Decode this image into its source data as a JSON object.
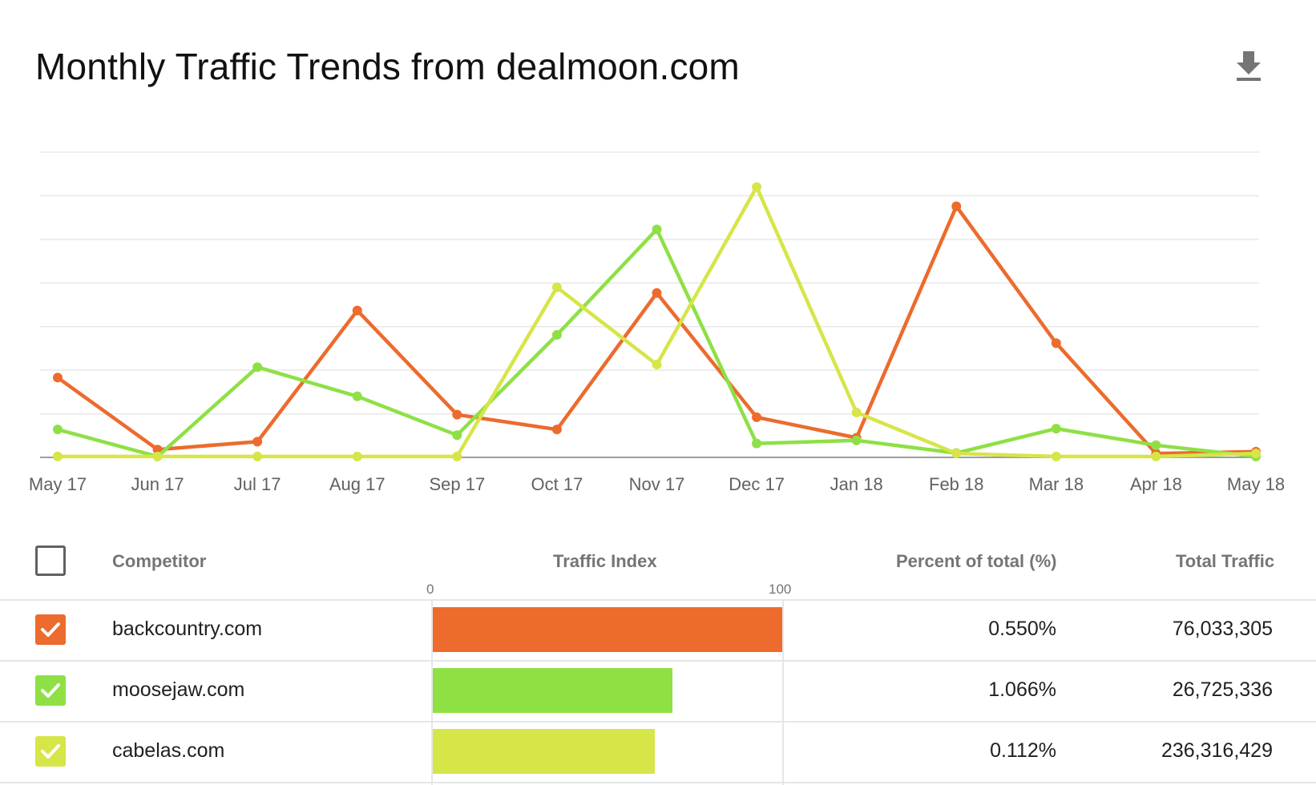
{
  "title": "Monthly Traffic Trends from dealmoon.com",
  "download_icon": "download-icon",
  "colors": {
    "backcountry": "#ec6b2d",
    "moosejaw": "#8ee045",
    "cabelas": "#d6e548",
    "grid": "#e8e8e8",
    "axis": "#9e9e9e"
  },
  "chart_data": {
    "type": "line",
    "title": "Monthly Traffic Trends from dealmoon.com",
    "xlabel": "",
    "ylabel": "",
    "x": [
      "May 17",
      "Jun 17",
      "Jul 17",
      "Aug 17",
      "Sep 17",
      "Oct 17",
      "Nov 17",
      "Dec 17",
      "Jan 18",
      "Feb 18",
      "Mar 18",
      "Apr 18",
      "May 18"
    ],
    "ylim": [
      0,
      7
    ],
    "grid": true,
    "y_tick_labels_shown": false,
    "series": [
      {
        "name": "backcountry.com",
        "color": "#ec6b2d",
        "values": [
          1.83,
          0.18,
          0.36,
          3.37,
          0.98,
          0.64,
          3.77,
          0.92,
          0.45,
          5.76,
          2.62,
          0.09,
          0.13
        ]
      },
      {
        "name": "moosejaw.com",
        "color": "#8ee045",
        "values": [
          0.64,
          0.02,
          2.07,
          1.4,
          0.51,
          2.81,
          5.23,
          0.32,
          0.39,
          0.1,
          0.66,
          0.28,
          0.02
        ]
      },
      {
        "name": "cabelas.com",
        "color": "#d6e548",
        "values": [
          0.02,
          0.02,
          0.02,
          0.02,
          0.02,
          3.9,
          2.13,
          6.2,
          1.03,
          0.09,
          0.02,
          0.02,
          0.09
        ]
      }
    ]
  },
  "table": {
    "headers": {
      "competitor": "Competitor",
      "traffic_index": "Traffic Index",
      "percent": "Percent of total (%)",
      "total": "Total Traffic"
    },
    "scale_min": "0",
    "scale_max": "100",
    "select_all_checked": false,
    "rows": [
      {
        "name": "backcountry.com",
        "checked": true,
        "color": "#ec6b2d",
        "index": 100,
        "percent": "0.550%",
        "total": "76,033,305"
      },
      {
        "name": "moosejaw.com",
        "checked": true,
        "color": "#8ee045",
        "index": 68.5,
        "percent": "1.066%",
        "total": "26,725,336"
      },
      {
        "name": "cabelas.com",
        "checked": true,
        "color": "#d6e548",
        "index": 63.5,
        "percent": "0.112%",
        "total": "236,316,429"
      }
    ]
  }
}
